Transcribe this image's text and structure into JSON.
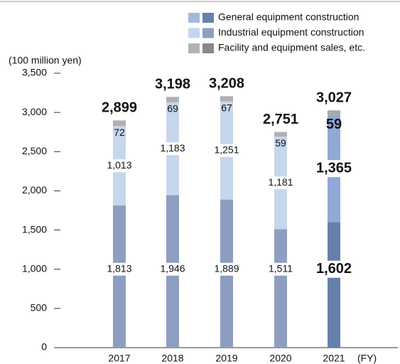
{
  "chart_data": {
    "type": "stacked_bar",
    "y_axis_label": "(100 million yen)",
    "x_axis_label": "(FY)",
    "categories": [
      "2017",
      "2018",
      "2019",
      "2020",
      "2021"
    ],
    "legend": [
      {
        "name": "General equipment construction",
        "colors": [
          "#a4b8de",
          "#6880ad"
        ]
      },
      {
        "name": "Industrial equipment construction",
        "colors": [
          "#c5d6ec",
          "#8d9ec1"
        ]
      },
      {
        "name": "Facility and equipment sales, etc.",
        "colors": [
          "#b3b3b3",
          "#888888"
        ]
      }
    ],
    "series": [
      {
        "values": [
          1813,
          1946,
          1889,
          1511,
          1602
        ],
        "value_labels": [
          "1,813",
          "1,946",
          "1,889",
          "1,511",
          "1,602"
        ],
        "colors": [
          "#8d9ec1",
          "#8d9ec1",
          "#8d9ec1",
          "#8d9ec1",
          "#6580ab"
        ]
      },
      {
        "values": [
          1013,
          1183,
          1251,
          1181,
          1365
        ],
        "value_labels": [
          "1,013",
          "1,183",
          "1,251",
          "1,181",
          "1,365"
        ],
        "colors": [
          "#c6d6ec",
          "#c6d6ec",
          "#c6d6ec",
          "#c6d6ec",
          "#90a9d6"
        ]
      },
      {
        "values": [
          72,
          69,
          67,
          59,
          59
        ],
        "colors": [
          "#b0b0b0",
          "#b0b0b0",
          "#b0b0b0",
          "#b0b0b0",
          "#a8a8a8"
        ]
      }
    ],
    "totals": [
      2899,
      3198,
      3208,
      2751,
      3027
    ],
    "total_labels": [
      "2,899",
      "3,198",
      "3,208",
      "2,751",
      "3,027"
    ],
    "ylim": [
      0,
      3500
    ],
    "yticks": [
      0,
      500,
      {
        "value": 1000,
        "label": "1,000"
      },
      {
        "value": 1500,
        "label": "1,500"
      },
      {
        "value": 2000,
        "label": "2,000"
      },
      {
        "value": 2500,
        "label": "2,500"
      },
      {
        "value": 3000,
        "label": "3,000"
      },
      {
        "value": 3500,
        "label": "3,500"
      }
    ]
  }
}
